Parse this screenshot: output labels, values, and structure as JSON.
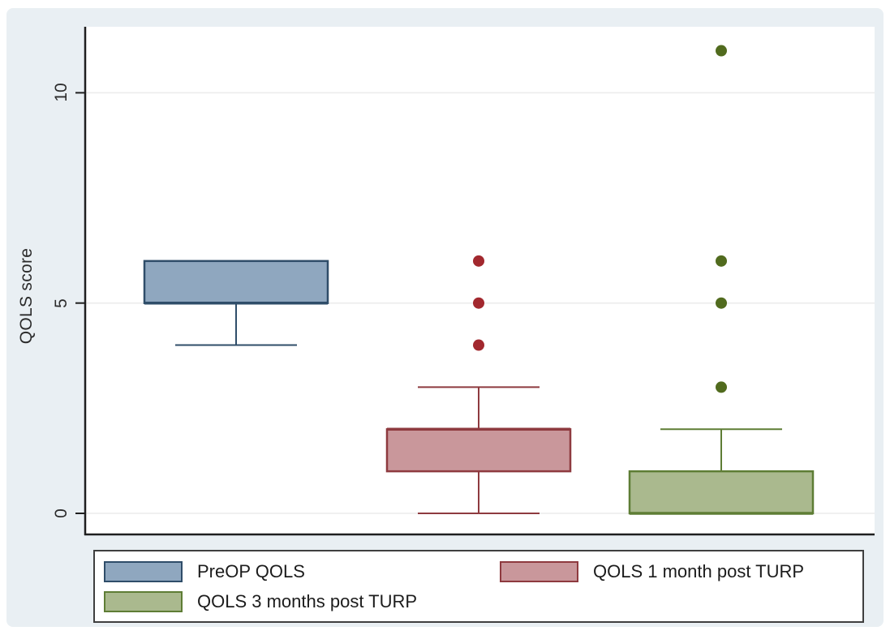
{
  "figure": {
    "background": "#ffffff",
    "canvas_background": "#e9eff3",
    "plot_background": "#ffffff",
    "gridline_color": "#ebebeb",
    "axis_color": "#1f1f1f",
    "text_color": "#2b2b2b"
  },
  "chart_data": {
    "type": "box",
    "title": "",
    "xlabel": "",
    "ylabel": "QOLS score",
    "yticks": [
      0,
      5,
      10
    ],
    "ylim": [
      -0.55,
      11.6
    ],
    "grid": true,
    "legend_position": "bottom",
    "series": [
      {
        "name": "PreOP QOLS",
        "q1": 5,
        "median": 5,
        "q3": 6,
        "whisker_low": 4,
        "whisker_high": 6,
        "outliers": [],
        "fill": "#8fa7bf",
        "border": "#2f4d69",
        "outlier_color": "#2f4d69"
      },
      {
        "name": "QOLS 1 month post TURP",
        "q1": 1,
        "median": 2,
        "q3": 2,
        "whisker_low": 0,
        "whisker_high": 3,
        "outliers": [
          4,
          5,
          6
        ],
        "fill": "#c9979b",
        "border": "#8e3a3f",
        "outlier_color": "#a2282e"
      },
      {
        "name": "QOLS 3 months post TURP",
        "q1": 0,
        "median": 0,
        "q3": 1,
        "whisker_low": 0,
        "whisker_high": 2,
        "outliers": [
          3,
          5,
          6,
          11
        ],
        "fill": "#aab98e",
        "border": "#5e7d35",
        "outlier_color": "#516b1e"
      }
    ]
  },
  "legend": {
    "items": [
      {
        "label": "PreOP QOLS",
        "series": 0
      },
      {
        "label": "QOLS 1 month post TURP",
        "series": 1
      },
      {
        "label": "QOLS 3 months post TURP",
        "series": 2
      }
    ]
  }
}
